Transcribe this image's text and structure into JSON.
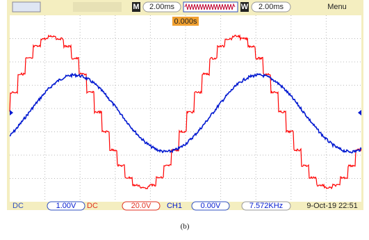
{
  "top_bar": {
    "timebase_label": "M",
    "timebase": "2.00ms",
    "window_label": "W",
    "window": "2.00ms",
    "menu": "Menu",
    "trigger_time": "0.000s"
  },
  "bottom_bar": {
    "ch1_coupling": "DC",
    "ch1_scale": "1.00V",
    "ch2_coupling": "DC",
    "ch2_scale": "20.0V",
    "trigger_source": "CH1",
    "trigger_level": "0.00V",
    "frequency": "7.572KHz",
    "datetime": "9-Oct-19 22:51"
  },
  "caption": "(b)"
}
